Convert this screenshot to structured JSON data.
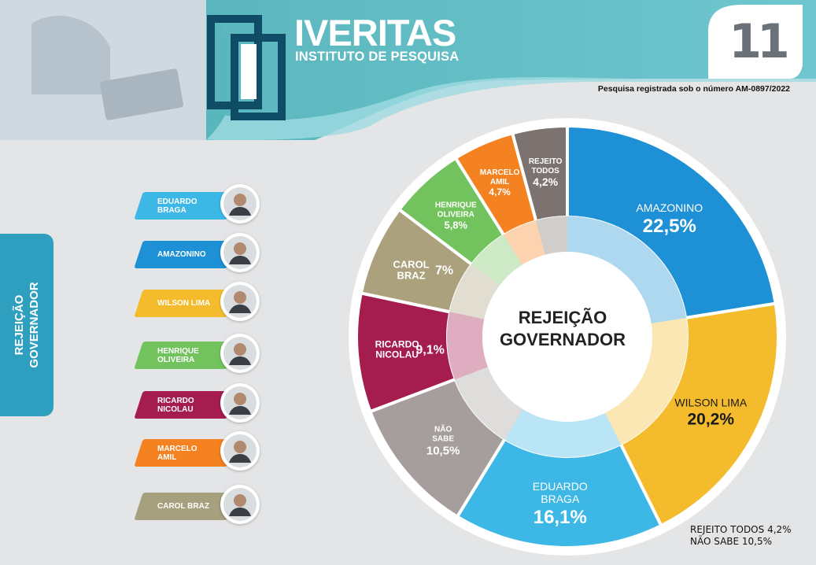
{
  "header": {
    "brand_title": "IVERITAS",
    "brand_subtitle": "INSTITUTO DE PESQUISA",
    "page_number": "11",
    "registration": "Pesquisa registrada sob o número AM-0897/2022"
  },
  "side_tab": {
    "line1": "REJEIÇÃO",
    "line2": "GOVERNADOR"
  },
  "legend": [
    {
      "line1": "EDUARDO",
      "line2": "BRAGA",
      "color": "#3db8e6"
    },
    {
      "line1": "AMAZONINO",
      "line2": "",
      "color": "#1e91d6"
    },
    {
      "line1": "WILSON LIMA",
      "line2": "",
      "color": "#f4bc2c"
    },
    {
      "line1": "HENRIQUE",
      "line2": "OLIVEIRA",
      "color": "#72c35e"
    },
    {
      "line1": "RICARDO",
      "line2": "NICOLAU",
      "color": "#a41d4e"
    },
    {
      "line1": "MARCELO",
      "line2": "AMIL",
      "color": "#f58220"
    },
    {
      "line1": "CAROL BRAZ",
      "line2": "",
      "color": "#a6a07f"
    }
  ],
  "chart_data": {
    "type": "pie",
    "title": "REJEIÇÃO GOVERNADOR",
    "title_line1": "REJEIÇÃO",
    "title_line2": "GOVERNADOR",
    "slices": [
      {
        "label": "AMAZONINO",
        "label_line2": "",
        "value": 22.5,
        "display": "22,5%",
        "color": "#1e91d6"
      },
      {
        "label": "WILSON LIMA",
        "label_line2": "",
        "value": 20.2,
        "display": "20,2%",
        "color": "#f4bc2c"
      },
      {
        "label": "EDUARDO",
        "label_line2": "BRAGA",
        "value": 16.1,
        "display": "16,1%",
        "color": "#3db8e6"
      },
      {
        "label": "NÃO",
        "label_line2": "SABE",
        "value": 10.5,
        "display": "10,5%",
        "color": "#a59e9d"
      },
      {
        "label": "RICARDO",
        "label_line2": "NICOLAU",
        "value": 9.1,
        "display": "9,1%",
        "color": "#a41d4e"
      },
      {
        "label": "CAROL",
        "label_line2": "BRAZ",
        "value": 7.0,
        "display": "7%",
        "color": "#aba27d"
      },
      {
        "label": "HENRIQUE",
        "label_line2": "OLIVEIRA",
        "value": 5.8,
        "display": "5,8%",
        "color": "#72c35e"
      },
      {
        "label": "MARCELO",
        "label_line2": "AMIL",
        "value": 4.7,
        "display": "4,7%",
        "color": "#f58220"
      },
      {
        "label": "REJEITO",
        "label_line2": "TODOS",
        "value": 4.2,
        "display": "4,2%",
        "color": "#7c7370"
      }
    ]
  },
  "footnotes": {
    "line1": "REJEITO TODOS 4,2%",
    "line2": "NÃO SABE 10,5%"
  }
}
